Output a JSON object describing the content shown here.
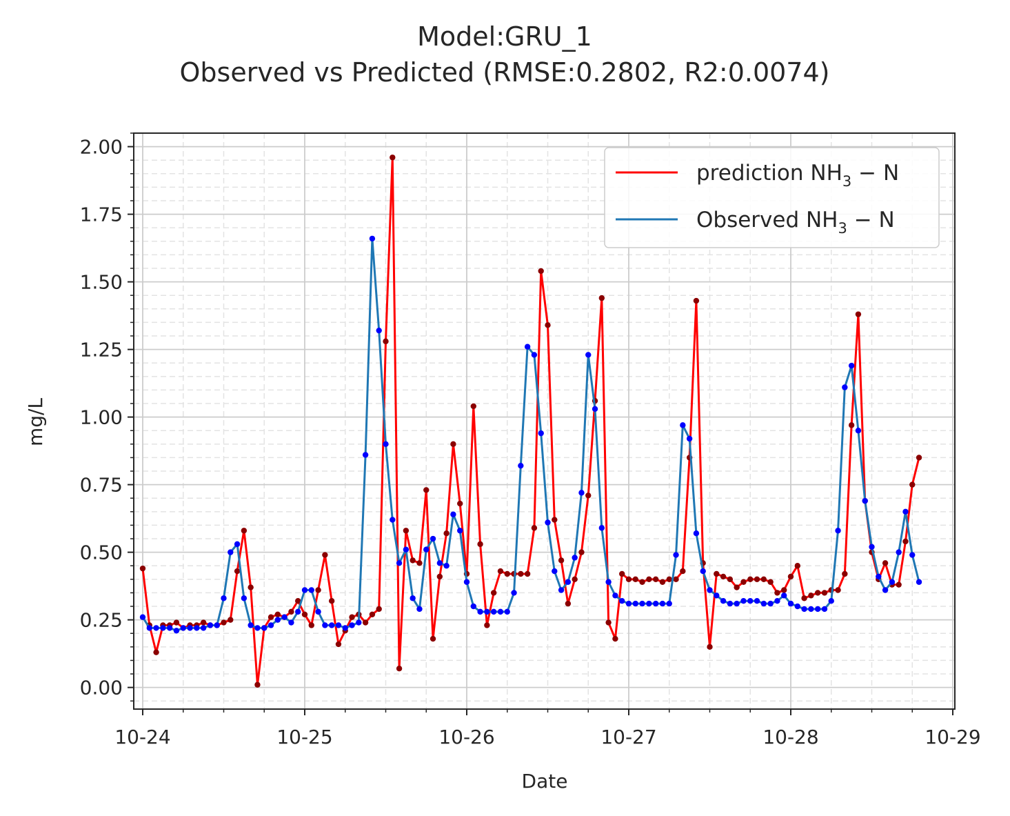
{
  "chart_data": {
    "type": "line",
    "title": "Model:GRU_1",
    "subtitle": "Observed vs Predicted (RMSE:0.2802, R2:0.0074)",
    "xlabel": "Date",
    "ylabel": "mg/L",
    "x_tick_labels": [
      "10-24",
      "10-25",
      "10-26",
      "10-27",
      "10-28",
      "10-29"
    ],
    "y_tick_labels": [
      "0.00",
      "0.25",
      "0.50",
      "0.75",
      "1.00",
      "1.25",
      "1.50",
      "1.75",
      "2.00"
    ],
    "y_ticks": [
      0,
      0.25,
      0.5,
      0.75,
      1.0,
      1.25,
      1.5,
      1.75,
      2.0
    ],
    "ylim": [
      -0.08,
      2.05
    ],
    "x_start": "10-24",
    "x_step_hours": 1,
    "grid": true,
    "legend_position": "top-right",
    "series": [
      {
        "name": "prediction NH",
        "name_sub": "3",
        "name_suffix": " − N",
        "color": "#ff0000",
        "marker_color": "#8b0000",
        "values": [
          0.44,
          0.23,
          0.13,
          0.23,
          0.23,
          0.24,
          0.22,
          0.23,
          0.23,
          0.24,
          0.23,
          0.23,
          0.24,
          0.25,
          0.43,
          0.58,
          0.37,
          0.01,
          0.22,
          0.26,
          0.27,
          0.26,
          0.28,
          0.32,
          0.27,
          0.23,
          0.36,
          0.49,
          0.32,
          0.16,
          0.21,
          0.26,
          0.27,
          0.24,
          0.27,
          0.29,
          1.28,
          1.96,
          0.07,
          0.58,
          0.47,
          0.46,
          0.73,
          0.18,
          0.41,
          0.57,
          0.9,
          0.68,
          0.42,
          1.04,
          0.53,
          0.23,
          0.35,
          0.43,
          0.42,
          0.42,
          0.42,
          0.42,
          0.59,
          1.54,
          1.34,
          0.62,
          0.47,
          0.31,
          0.4,
          0.5,
          0.71,
          1.06,
          1.44,
          0.24,
          0.18,
          0.42,
          0.4,
          0.4,
          0.39,
          0.4,
          0.4,
          0.39,
          0.4,
          0.4,
          0.43,
          0.85,
          1.43,
          0.46,
          0.15,
          0.42,
          0.41,
          0.4,
          0.37,
          0.39,
          0.4,
          0.4,
          0.4,
          0.39,
          0.35,
          0.36,
          0.41,
          0.45,
          0.33,
          0.34,
          0.35,
          0.35,
          0.36,
          0.36,
          0.42,
          0.97,
          1.38,
          0.69,
          0.5,
          0.4,
          0.46,
          0.38,
          0.38,
          0.54,
          0.75,
          0.85
        ]
      },
      {
        "name": "Observed NH",
        "name_sub": "3",
        "name_suffix": " − N",
        "color": "#1f77b4",
        "marker_color": "#0000ff",
        "values": [
          0.26,
          0.22,
          0.22,
          0.22,
          0.22,
          0.21,
          0.22,
          0.22,
          0.22,
          0.22,
          0.23,
          0.23,
          0.33,
          0.5,
          0.53,
          0.33,
          0.23,
          0.22,
          0.22,
          0.23,
          0.25,
          0.26,
          0.24,
          0.28,
          0.36,
          0.36,
          0.28,
          0.23,
          0.23,
          0.23,
          0.22,
          0.23,
          0.24,
          0.86,
          1.66,
          1.32,
          0.9,
          0.62,
          0.46,
          0.51,
          0.33,
          0.29,
          0.51,
          0.55,
          0.46,
          0.45,
          0.64,
          0.58,
          0.39,
          0.3,
          0.28,
          0.28,
          0.28,
          0.28,
          0.28,
          0.35,
          0.82,
          1.26,
          1.23,
          0.94,
          0.61,
          0.43,
          0.36,
          0.39,
          0.48,
          0.72,
          1.23,
          1.03,
          0.59,
          0.39,
          0.34,
          0.32,
          0.31,
          0.31,
          0.31,
          0.31,
          0.31,
          0.31,
          0.31,
          0.49,
          0.97,
          0.92,
          0.57,
          0.43,
          0.36,
          0.34,
          0.32,
          0.31,
          0.31,
          0.32,
          0.32,
          0.32,
          0.31,
          0.31,
          0.32,
          0.34,
          0.31,
          0.3,
          0.29,
          0.29,
          0.29,
          0.29,
          0.32,
          0.58,
          1.11,
          1.19,
          0.95,
          0.69,
          0.52,
          0.41,
          0.36,
          0.39,
          0.5,
          0.65,
          0.49,
          0.39
        ]
      }
    ]
  }
}
